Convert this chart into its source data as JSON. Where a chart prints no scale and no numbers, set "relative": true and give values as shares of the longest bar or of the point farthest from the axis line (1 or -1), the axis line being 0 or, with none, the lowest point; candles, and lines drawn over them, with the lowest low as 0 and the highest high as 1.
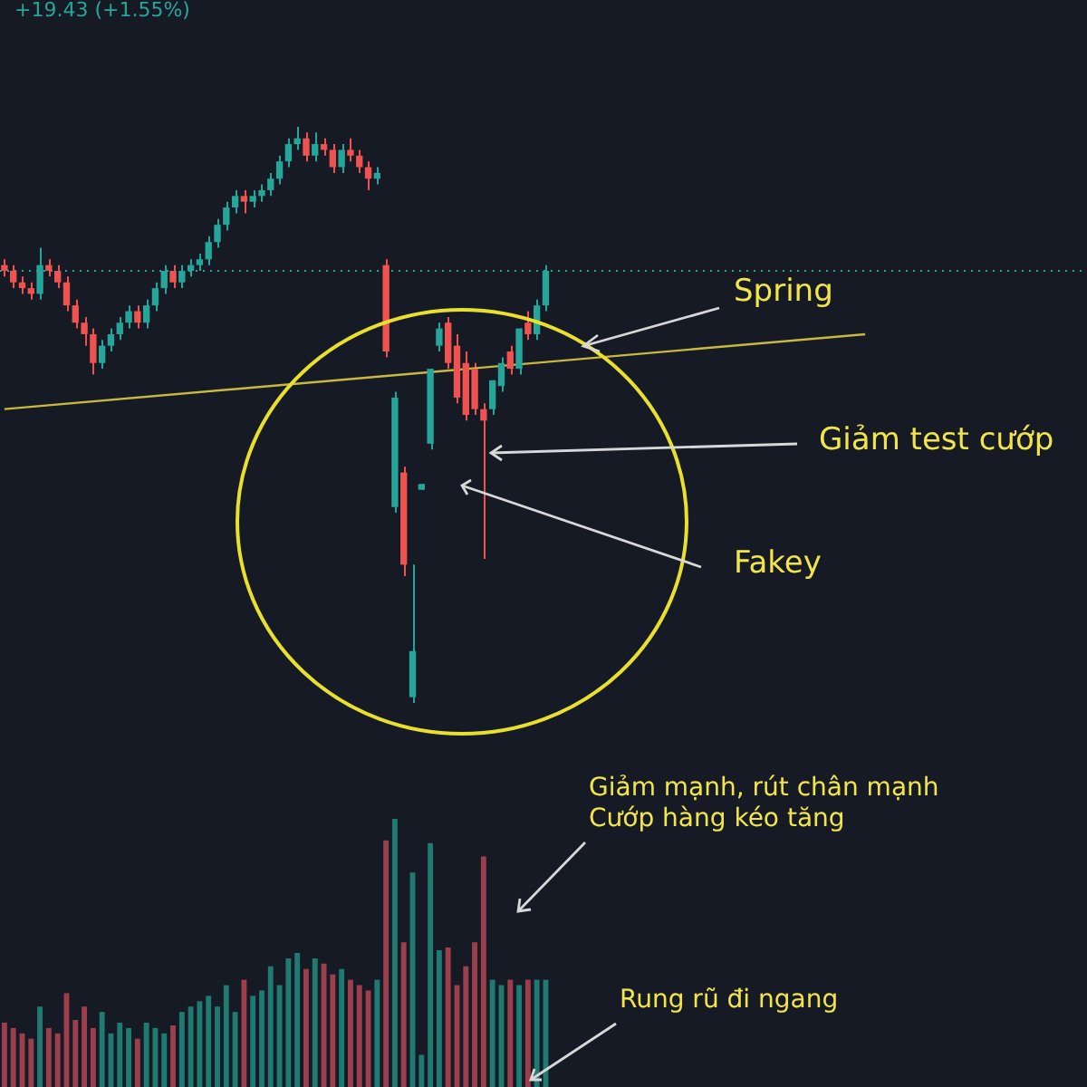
{
  "chart_data": [
    {
      "type": "candlestick",
      "relative": true,
      "legend": false,
      "categories": [
        null,
        null,
        null,
        null,
        null,
        null,
        null,
        null,
        null,
        null,
        null,
        null,
        null,
        null,
        null,
        null,
        null,
        null,
        null,
        null,
        null,
        null,
        null,
        null,
        null,
        null,
        null,
        null,
        null,
        null,
        null,
        null,
        null,
        null,
        null,
        null,
        null,
        null,
        null,
        null,
        null,
        null,
        null,
        null,
        null,
        null,
        null,
        null,
        null,
        null,
        null,
        null,
        null,
        null,
        null,
        null,
        null,
        null,
        null,
        null,
        null,
        null,
        null,
        null,
        null,
        null,
        null,
        null,
        null,
        null,
        null,
        null,
        null,
        null,
        null,
        null,
        null,
        null,
        null,
        null,
        null,
        null,
        null,
        null,
        null,
        null,
        null,
        null,
        null,
        null,
        null,
        null,
        null,
        null,
        null,
        null,
        null,
        null
      ],
      "ohlc": [
        [
          0.76,
          0.77,
          0.74,
          0.75
        ],
        [
          0.75,
          0.76,
          0.72,
          0.73
        ],
        [
          0.73,
          0.74,
          0.71,
          0.72
        ],
        [
          0.72,
          0.73,
          0.7,
          0.71
        ],
        [
          0.71,
          0.79,
          0.7,
          0.76
        ],
        [
          0.76,
          0.77,
          0.74,
          0.75
        ],
        [
          0.75,
          0.76,
          0.72,
          0.73
        ],
        [
          0.73,
          0.74,
          0.68,
          0.69
        ],
        [
          0.69,
          0.7,
          0.65,
          0.66
        ],
        [
          0.66,
          0.67,
          0.62,
          0.64
        ],
        [
          0.64,
          0.65,
          0.57,
          0.59
        ],
        [
          0.59,
          0.63,
          0.58,
          0.62
        ],
        [
          0.62,
          0.65,
          0.61,
          0.64
        ],
        [
          0.64,
          0.67,
          0.63,
          0.66
        ],
        [
          0.66,
          0.69,
          0.65,
          0.68
        ],
        [
          0.68,
          0.69,
          0.65,
          0.66
        ],
        [
          0.66,
          0.7,
          0.65,
          0.69
        ],
        [
          0.69,
          0.73,
          0.68,
          0.72
        ],
        [
          0.72,
          0.76,
          0.71,
          0.75
        ],
        [
          0.75,
          0.76,
          0.72,
          0.73
        ],
        [
          0.73,
          0.76,
          0.72,
          0.75
        ],
        [
          0.75,
          0.77,
          0.74,
          0.76
        ],
        [
          0.76,
          0.78,
          0.75,
          0.77
        ],
        [
          0.77,
          0.81,
          0.76,
          0.8
        ],
        [
          0.8,
          0.84,
          0.79,
          0.83
        ],
        [
          0.83,
          0.87,
          0.82,
          0.86
        ],
        [
          0.86,
          0.89,
          0.85,
          0.88
        ],
        [
          0.88,
          0.89,
          0.85,
          0.87
        ],
        [
          0.87,
          0.89,
          0.86,
          0.88
        ],
        [
          0.88,
          0.9,
          0.87,
          0.89
        ],
        [
          0.89,
          0.92,
          0.88,
          0.91
        ],
        [
          0.91,
          0.95,
          0.9,
          0.94
        ],
        [
          0.94,
          0.98,
          0.93,
          0.97
        ],
        [
          0.97,
          1.0,
          0.96,
          0.98
        ],
        [
          0.98,
          0.99,
          0.94,
          0.95
        ],
        [
          0.95,
          0.99,
          0.94,
          0.97
        ],
        [
          0.97,
          0.98,
          0.95,
          0.96
        ],
        [
          0.96,
          0.97,
          0.92,
          0.93
        ],
        [
          0.93,
          0.97,
          0.92,
          0.96
        ],
        [
          0.96,
          0.98,
          0.94,
          0.95
        ],
        [
          0.95,
          0.96,
          0.92,
          0.93
        ],
        [
          0.93,
          0.94,
          0.89,
          0.91
        ],
        [
          0.91,
          0.93,
          0.9,
          0.92
        ],
        [
          0.76,
          0.77,
          0.6,
          0.61
        ],
        [
          0.34,
          0.54,
          0.33,
          0.53
        ],
        [
          0.4,
          0.41,
          0.22,
          0.24
        ],
        [
          0.01,
          0.24,
          0.0,
          0.09
        ],
        [
          0.37,
          0.38,
          0.37,
          0.38
        ],
        [
          0.45,
          0.58,
          0.44,
          0.58
        ],
        [
          0.62,
          0.66,
          0.61,
          0.65
        ],
        [
          0.66,
          0.67,
          0.58,
          0.59
        ],
        [
          0.62,
          0.64,
          0.52,
          0.53
        ],
        [
          0.59,
          0.61,
          0.49,
          0.5
        ],
        [
          0.58,
          0.59,
          0.5,
          0.51
        ],
        [
          0.51,
          0.52,
          0.25,
          0.49
        ],
        [
          0.51,
          0.56,
          0.5,
          0.56
        ],
        [
          0.55,
          0.6,
          0.54,
          0.59
        ],
        [
          0.61,
          0.62,
          0.57,
          0.58
        ],
        [
          0.58,
          0.65,
          0.57,
          0.65
        ],
        [
          0.66,
          0.68,
          0.63,
          0.64
        ],
        [
          0.64,
          0.7,
          0.63,
          0.69
        ],
        [
          0.69,
          0.76,
          0.68,
          0.75
        ],
        null,
        null,
        null,
        null,
        null,
        null,
        null,
        null,
        null,
        null,
        null,
        null,
        null,
        null,
        null,
        null,
        null,
        null,
        null,
        null,
        null,
        null,
        null,
        null,
        null,
        null,
        null,
        null,
        null,
        null,
        null,
        null,
        null,
        null,
        null,
        null
      ],
      "colors": [
        "#ef5350",
        "#ef5350",
        "#ef5350",
        "#ef5350",
        "#26a69a",
        "#ef5350",
        "#ef5350",
        "#ef5350",
        "#ef5350",
        "#ef5350",
        "#ef5350",
        "#26a69a",
        "#26a69a",
        "#26a69a",
        "#26a69a",
        "#ef5350",
        "#26a69a",
        "#26a69a",
        "#26a69a",
        "#ef5350",
        "#26a69a",
        "#26a69a",
        "#26a69a",
        "#26a69a",
        "#26a69a",
        "#26a69a",
        "#26a69a",
        "#ef5350",
        "#26a69a",
        "#26a69a",
        "#26a69a",
        "#26a69a",
        "#26a69a",
        "#26a69a",
        "#ef5350",
        "#26a69a",
        "#ef5350",
        "#ef5350",
        "#26a69a",
        "#ef5350",
        "#ef5350",
        "#ef5350",
        "#26a69a",
        "#ef5350",
        "#26a69a",
        "#ef5350",
        "#26a69a",
        "#26a69a",
        "#26a69a",
        "#26a69a",
        "#ef5350",
        "#ef5350",
        "#ef5350",
        "#ef5350",
        "#ef5350",
        "#26a69a",
        "#26a69a",
        "#ef5350",
        "#26a69a",
        "#ef5350",
        "#26a69a",
        "#26a69a",
        null,
        null,
        null,
        null,
        null,
        null,
        null,
        null,
        null,
        null,
        null,
        null,
        null,
        null,
        null,
        null,
        null,
        null,
        null,
        null,
        null,
        null,
        null,
        null,
        null,
        null,
        null,
        null,
        null,
        null,
        null,
        null,
        null,
        null,
        null,
        null
      ],
      "series": [
        {
          "type": "line",
          "color": "#c9b83e",
          "values": [
            0.51,
            null,
            null,
            null,
            null,
            null,
            null,
            null,
            null,
            null,
            null,
            null,
            null,
            null,
            null,
            null,
            null,
            null,
            null,
            null,
            null,
            null,
            null,
            null,
            null,
            null,
            null,
            null,
            null,
            null,
            null,
            null,
            null,
            null,
            null,
            null,
            null,
            null,
            null,
            null,
            null,
            null,
            null,
            null,
            null,
            null,
            null,
            null,
            null,
            null,
            null,
            null,
            null,
            null,
            null,
            null,
            null,
            null,
            null,
            null,
            null,
            null,
            null,
            null,
            null,
            null,
            null,
            null,
            null,
            null,
            null,
            null,
            null,
            null,
            null,
            null,
            null,
            null,
            null,
            null,
            null,
            null,
            null,
            null,
            null,
            null,
            null,
            null,
            null,
            null,
            null,
            null,
            null,
            null,
            null,
            null,
            null,
            0.64
          ]
        }
      ],
      "ref_lines": [
        {
          "axis": "y",
          "value": 0.75,
          "color": "#26a69a",
          "line_style": "dotted"
        }
      ],
      "annotations": [
        "+19.43 (+1.55%)",
        "Spring",
        "Giảm test cướp",
        "Fakey"
      ]
    },
    {
      "type": "bar",
      "relative": true,
      "legend": false,
      "categories": [
        null,
        null,
        null,
        null,
        null,
        null,
        null,
        null,
        null,
        null,
        null,
        null,
        null,
        null,
        null,
        null,
        null,
        null,
        null,
        null,
        null,
        null,
        null,
        null,
        null,
        null,
        null,
        null,
        null,
        null,
        null,
        null,
        null,
        null,
        null,
        null,
        null,
        null,
        null,
        null,
        null,
        null,
        null,
        null,
        null,
        null,
        null,
        null,
        null,
        null,
        null,
        null,
        null,
        null,
        null,
        null,
        null,
        null,
        null,
        null,
        null,
        null,
        null,
        null,
        null,
        null,
        null,
        null,
        null,
        null,
        null,
        null,
        null,
        null,
        null,
        null,
        null,
        null,
        null,
        null,
        null,
        null,
        null,
        null,
        null,
        null,
        null,
        null,
        null,
        null,
        null,
        null,
        null,
        null,
        null,
        null,
        null,
        null
      ],
      "values": [
        0.24,
        0.22,
        0.2,
        0.18,
        0.3,
        0.22,
        0.2,
        0.35,
        0.25,
        0.3,
        0.22,
        0.28,
        0.2,
        0.24,
        0.22,
        0.18,
        0.24,
        0.22,
        0.2,
        0.23,
        0.28,
        0.3,
        0.32,
        0.34,
        0.3,
        0.38,
        0.28,
        0.4,
        0.34,
        0.36,
        0.45,
        0.38,
        0.48,
        0.5,
        0.44,
        0.48,
        0.46,
        0.42,
        0.44,
        0.4,
        0.38,
        0.36,
        0.4,
        0.92,
        1.0,
        0.54,
        0.8,
        0.12,
        0.91,
        0.51,
        0.52,
        0.38,
        0.45,
        0.54,
        0.86,
        0.4,
        0.38,
        0.4,
        0.38,
        0.4,
        0.4,
        0.4,
        null,
        null,
        null,
        null,
        null,
        null,
        null,
        null,
        null,
        null,
        null,
        null,
        null,
        null,
        null,
        null,
        null,
        null,
        null,
        null,
        null,
        null,
        null,
        null,
        null,
        null,
        null,
        null,
        null,
        null,
        null,
        null,
        null,
        null,
        null,
        null
      ],
      "colors": [
        "#9c3f4c",
        "#9c3f4c",
        "#9c3f4c",
        "#9c3f4c",
        "#1f7a72",
        "#9c3f4c",
        "#9c3f4c",
        "#9c3f4c",
        "#9c3f4c",
        "#9c3f4c",
        "#9c3f4c",
        "#1f7a72",
        "#1f7a72",
        "#1f7a72",
        "#1f7a72",
        "#9c3f4c",
        "#1f7a72",
        "#1f7a72",
        "#1f7a72",
        "#9c3f4c",
        "#1f7a72",
        "#1f7a72",
        "#1f7a72",
        "#1f7a72",
        "#1f7a72",
        "#1f7a72",
        "#1f7a72",
        "#9c3f4c",
        "#1f7a72",
        "#1f7a72",
        "#1f7a72",
        "#1f7a72",
        "#1f7a72",
        "#1f7a72",
        "#9c3f4c",
        "#1f7a72",
        "#9c3f4c",
        "#9c3f4c",
        "#1f7a72",
        "#9c3f4c",
        "#9c3f4c",
        "#9c3f4c",
        "#1f7a72",
        "#9c3f4c",
        "#1f7a72",
        "#9c3f4c",
        "#1f7a72",
        "#1f7a72",
        "#1f7a72",
        "#1f7a72",
        "#9c3f4c",
        "#9c3f4c",
        "#9c3f4c",
        "#9c3f4c",
        "#9c3f4c",
        "#1f7a72",
        "#1f7a72",
        "#9c3f4c",
        "#1f7a72",
        "#9c3f4c",
        "#1f7a72",
        "#1f7a72",
        null,
        null,
        null,
        null,
        null,
        null,
        null,
        null,
        null,
        null,
        null,
        null,
        null,
        null,
        null,
        null,
        null,
        null,
        null,
        null,
        null,
        null,
        null,
        null,
        null,
        null,
        null,
        null,
        null,
        null,
        null,
        null,
        null,
        null,
        null,
        null
      ],
      "annotations": [
        "Giảm mạnh, rút chân mạnh",
        "Cướp hàng kéo tăng",
        "Rung rũ đi ngang"
      ]
    }
  ]
}
